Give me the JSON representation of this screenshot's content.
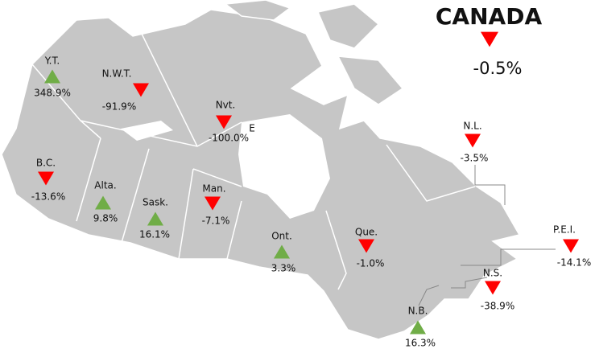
{
  "title": "CANADA",
  "national": {
    "change": "-0.5%",
    "direction": "down"
  },
  "annotation": "E",
  "colors": {
    "up": "#70ad47",
    "down": "#ff0000"
  },
  "regions": [
    {
      "label": "Y.T.",
      "change": "348.9%",
      "direction": "up"
    },
    {
      "label": "N.W.T.",
      "change": "-91.9%",
      "direction": "down"
    },
    {
      "label": "Nvt.",
      "change": "-100.0%",
      "direction": "down"
    },
    {
      "label": "B.C.",
      "change": "-13.6%",
      "direction": "down"
    },
    {
      "label": "Alta.",
      "change": "9.8%",
      "direction": "up"
    },
    {
      "label": "Sask.",
      "change": "16.1%",
      "direction": "up"
    },
    {
      "label": "Man.",
      "change": "-7.1%",
      "direction": "down"
    },
    {
      "label": "Ont.",
      "change": "3.3%",
      "direction": "up"
    },
    {
      "label": "Que.",
      "change": "-1.0%",
      "direction": "down"
    },
    {
      "label": "N.L.",
      "change": "-3.5%",
      "direction": "down"
    },
    {
      "label": "P.E.I.",
      "change": "-14.1%",
      "direction": "down"
    },
    {
      "label": "N.S.",
      "change": "-38.9%",
      "direction": "down"
    },
    {
      "label": "N.B.",
      "change": "16.3%",
      "direction": "up"
    }
  ]
}
